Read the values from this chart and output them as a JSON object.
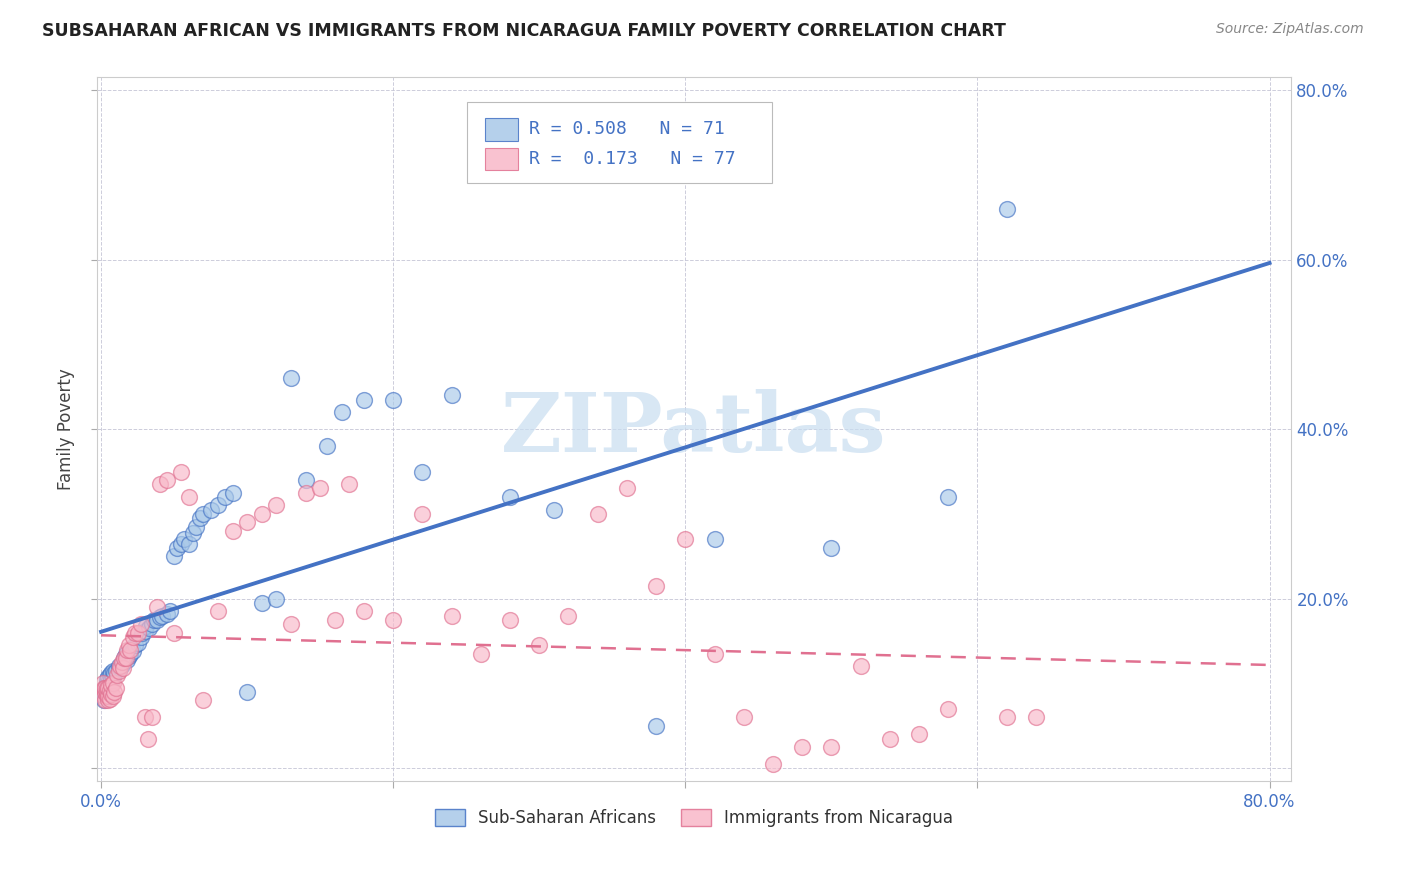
{
  "title": "SUBSAHARAN AFRICAN VS IMMIGRANTS FROM NICARAGUA FAMILY POVERTY CORRELATION CHART",
  "source": "Source: ZipAtlas.com",
  "ylabel": "Family Poverty",
  "legend_label1": "Sub-Saharan Africans",
  "legend_label2": "Immigrants from Nicaragua",
  "R1": "0.508",
  "N1": "71",
  "R2": "0.173",
  "N2": "77",
  "color_blue": "#a8c8e8",
  "color_pink": "#f8b8c8",
  "color_blue_line": "#4472c4",
  "color_pink_line": "#e07090",
  "color_tick": "#4472c4",
  "watermark_text": "ZIPatlas",
  "watermark_color": "#c8ddf0",
  "xlim": [
    0.0,
    0.8
  ],
  "ylim": [
    0.0,
    0.8
  ],
  "xticks": [
    0.0,
    0.2,
    0.4,
    0.6,
    0.8
  ],
  "yticks": [
    0.0,
    0.2,
    0.4,
    0.6,
    0.8
  ],
  "xtick_labels": [
    "0.0%",
    "",
    "",
    "",
    "80.0%"
  ],
  "ytick_labels_right": [
    "",
    "20.0%",
    "40.0%",
    "60.0%",
    "80.0%"
  ],
  "blue_x": [
    0.002,
    0.003,
    0.003,
    0.004,
    0.004,
    0.005,
    0.005,
    0.005,
    0.006,
    0.006,
    0.007,
    0.007,
    0.008,
    0.008,
    0.009,
    0.01,
    0.012,
    0.013,
    0.014,
    0.015,
    0.016,
    0.017,
    0.018,
    0.019,
    0.02,
    0.022,
    0.023,
    0.025,
    0.027,
    0.028,
    0.03,
    0.031,
    0.033,
    0.035,
    0.036,
    0.038,
    0.04,
    0.042,
    0.045,
    0.047,
    0.05,
    0.052,
    0.055,
    0.057,
    0.06,
    0.063,
    0.065,
    0.068,
    0.07,
    0.075,
    0.08,
    0.085,
    0.09,
    0.1,
    0.11,
    0.12,
    0.13,
    0.14,
    0.155,
    0.165,
    0.18,
    0.2,
    0.22,
    0.24,
    0.28,
    0.31,
    0.38,
    0.42,
    0.5,
    0.58,
    0.62
  ],
  "blue_y": [
    0.08,
    0.09,
    0.095,
    0.1,
    0.105,
    0.095,
    0.1,
    0.108,
    0.1,
    0.11,
    0.105,
    0.112,
    0.108,
    0.115,
    0.112,
    0.115,
    0.12,
    0.118,
    0.122,
    0.125,
    0.13,
    0.135,
    0.128,
    0.132,
    0.135,
    0.138,
    0.145,
    0.148,
    0.155,
    0.16,
    0.162,
    0.168,
    0.165,
    0.17,
    0.175,
    0.175,
    0.178,
    0.18,
    0.182,
    0.185,
    0.25,
    0.26,
    0.265,
    0.27,
    0.265,
    0.278,
    0.285,
    0.295,
    0.3,
    0.305,
    0.31,
    0.32,
    0.325,
    0.09,
    0.195,
    0.2,
    0.46,
    0.34,
    0.38,
    0.42,
    0.435,
    0.435,
    0.35,
    0.44,
    0.32,
    0.305,
    0.05,
    0.27,
    0.26,
    0.32,
    0.66
  ],
  "pink_x": [
    0.001,
    0.002,
    0.002,
    0.003,
    0.003,
    0.003,
    0.004,
    0.004,
    0.004,
    0.005,
    0.005,
    0.005,
    0.006,
    0.006,
    0.007,
    0.007,
    0.008,
    0.008,
    0.009,
    0.01,
    0.011,
    0.012,
    0.013,
    0.014,
    0.015,
    0.016,
    0.017,
    0.018,
    0.019,
    0.02,
    0.022,
    0.023,
    0.025,
    0.027,
    0.03,
    0.032,
    0.035,
    0.038,
    0.04,
    0.045,
    0.05,
    0.055,
    0.06,
    0.07,
    0.08,
    0.09,
    0.1,
    0.11,
    0.12,
    0.13,
    0.14,
    0.15,
    0.16,
    0.17,
    0.18,
    0.2,
    0.22,
    0.24,
    0.26,
    0.28,
    0.3,
    0.32,
    0.34,
    0.36,
    0.38,
    0.4,
    0.42,
    0.44,
    0.46,
    0.48,
    0.5,
    0.52,
    0.54,
    0.56,
    0.58,
    0.62,
    0.64
  ],
  "pink_y": [
    0.1,
    0.085,
    0.095,
    0.08,
    0.09,
    0.095,
    0.085,
    0.09,
    0.095,
    0.08,
    0.085,
    0.095,
    0.082,
    0.092,
    0.088,
    0.098,
    0.085,
    0.1,
    0.09,
    0.095,
    0.11,
    0.115,
    0.12,
    0.125,
    0.118,
    0.13,
    0.13,
    0.14,
    0.145,
    0.14,
    0.155,
    0.16,
    0.16,
    0.17,
    0.06,
    0.035,
    0.06,
    0.19,
    0.335,
    0.34,
    0.16,
    0.35,
    0.32,
    0.08,
    0.185,
    0.28,
    0.29,
    0.3,
    0.31,
    0.17,
    0.325,
    0.33,
    0.175,
    0.335,
    0.185,
    0.175,
    0.3,
    0.18,
    0.135,
    0.175,
    0.145,
    0.18,
    0.3,
    0.33,
    0.215,
    0.27,
    0.135,
    0.06,
    0.005,
    0.025,
    0.025,
    0.12,
    0.035,
    0.04,
    0.07,
    0.06,
    0.06
  ]
}
